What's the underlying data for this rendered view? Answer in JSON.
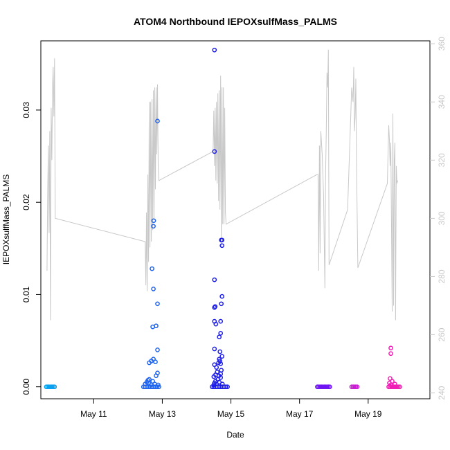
{
  "chart_data": {
    "type": "scatter",
    "title": "ATOM4 Northbound IEPOXsulfMass_PALMS",
    "xlabel": "Date",
    "ylabel": "IEPOXsulfMass_PALMS",
    "xlim": [
      9.46,
      20.8
    ],
    "ylim": [
      -0.0013,
      0.0375
    ],
    "y2lim": [
      238,
      361
    ],
    "x_ticks": [
      {
        "value": 11,
        "label": "May 11"
      },
      {
        "value": 13,
        "label": "May 13"
      },
      {
        "value": 15,
        "label": "May 15"
      },
      {
        "value": 17,
        "label": "May 17"
      },
      {
        "value": 19,
        "label": "May 19"
      }
    ],
    "y_ticks": [
      {
        "value": 0.0,
        "label": "0.00"
      },
      {
        "value": 0.01,
        "label": "0.01"
      },
      {
        "value": 0.02,
        "label": "0.02"
      },
      {
        "value": 0.03,
        "label": "0.03"
      }
    ],
    "y2_ticks": [
      {
        "value": 240,
        "label": "240"
      },
      {
        "value": 260,
        "label": "260"
      },
      {
        "value": 280,
        "label": "280"
      },
      {
        "value": 300,
        "label": "300"
      },
      {
        "value": 320,
        "label": "320"
      },
      {
        "value": 340,
        "label": "340"
      },
      {
        "value": 360,
        "label": "360"
      }
    ],
    "grid": false,
    "legend": "none",
    "colors": {
      "frame": "#000000",
      "secondary_line": "#c8c8c8",
      "secondary_axis": "#c8c8c8"
    },
    "series": [
      {
        "color": "#0aa0f0",
        "points": [
          [
            9.62,
            0
          ],
          [
            9.66,
            0
          ],
          [
            9.7,
            0
          ],
          [
            9.74,
            0
          ],
          [
            9.78,
            0
          ],
          [
            9.82,
            0
          ],
          [
            9.86,
            0
          ]
        ]
      },
      {
        "color": "#1e64f0",
        "points": [
          [
            12.45,
            0
          ],
          [
            12.5,
            0
          ],
          [
            12.55,
            0
          ],
          [
            12.6,
            0
          ],
          [
            12.65,
            0
          ],
          [
            12.7,
            0
          ],
          [
            12.75,
            0
          ],
          [
            12.8,
            0
          ],
          [
            12.85,
            0
          ],
          [
            12.9,
            0
          ],
          [
            12.5,
            0.0003
          ],
          [
            12.55,
            0.0005
          ],
          [
            12.58,
            0.0007
          ],
          [
            12.6,
            0.0004
          ],
          [
            12.62,
            0.0008
          ],
          [
            12.68,
            0.0002
          ],
          [
            12.72,
            0.0006
          ],
          [
            12.78,
            0.0003
          ],
          [
            12.82,
            0.0012
          ],
          [
            12.86,
            0.0015
          ],
          [
            12.88,
            0.0002
          ],
          [
            12.62,
            0.0026
          ],
          [
            12.68,
            0.0028
          ],
          [
            12.74,
            0.003
          ],
          [
            12.8,
            0.0027
          ],
          [
            12.86,
            0.004
          ],
          [
            12.72,
            0.0065
          ],
          [
            12.82,
            0.0066
          ],
          [
            12.86,
            0.009
          ],
          [
            12.74,
            0.0106
          ],
          [
            12.7,
            0.0128
          ],
          [
            12.74,
            0.0174
          ],
          [
            12.75,
            0.018
          ],
          [
            12.86,
            0.0288
          ]
        ]
      },
      {
        "color": "#1e1ee8",
        "points": [
          [
            14.45,
            0
          ],
          [
            14.5,
            0
          ],
          [
            14.55,
            0
          ],
          [
            14.6,
            0
          ],
          [
            14.65,
            0
          ],
          [
            14.7,
            0
          ],
          [
            14.75,
            0
          ],
          [
            14.8,
            0
          ],
          [
            14.85,
            0
          ],
          [
            14.9,
            0
          ],
          [
            14.5,
            0.0002
          ],
          [
            14.52,
            0.0004
          ],
          [
            14.55,
            0.0006
          ],
          [
            14.58,
            0.0003
          ],
          [
            14.62,
            0.0008
          ],
          [
            14.66,
            0.0005
          ],
          [
            14.7,
            0.001
          ],
          [
            14.75,
            0.0003
          ],
          [
            14.5,
            0.0011
          ],
          [
            14.55,
            0.0013
          ],
          [
            14.6,
            0.0016
          ],
          [
            14.65,
            0.0012
          ],
          [
            14.7,
            0.0014
          ],
          [
            14.72,
            0.0018
          ],
          [
            14.52,
            0.0024
          ],
          [
            14.58,
            0.0021
          ],
          [
            14.64,
            0.0026
          ],
          [
            14.7,
            0.0025
          ],
          [
            14.74,
            0.0033
          ],
          [
            14.66,
            0.003
          ],
          [
            14.68,
            0.0028
          ],
          [
            14.52,
            0.0041
          ],
          [
            14.68,
            0.0038
          ],
          [
            14.66,
            0.0054
          ],
          [
            14.7,
            0.0058
          ],
          [
            14.56,
            0.0068
          ],
          [
            14.7,
            0.0071
          ],
          [
            14.52,
            0.0071
          ],
          [
            14.52,
            0.0086
          ],
          [
            14.54,
            0.0087
          ],
          [
            14.72,
            0.009
          ],
          [
            14.74,
            0.0098
          ],
          [
            14.52,
            0.0116
          ],
          [
            14.74,
            0.0153
          ],
          [
            14.72,
            0.0159
          ],
          [
            14.74,
            0.0159
          ],
          [
            14.52,
            0.0255
          ],
          [
            14.52,
            0.0365
          ]
        ]
      },
      {
        "color": "#6e14f0",
        "points": [
          [
            17.52,
            0
          ],
          [
            17.56,
            0
          ],
          [
            17.6,
            0
          ],
          [
            17.64,
            0
          ],
          [
            17.68,
            0
          ],
          [
            17.72,
            0
          ],
          [
            17.76,
            0
          ],
          [
            17.8,
            0
          ],
          [
            17.84,
            0
          ],
          [
            17.88,
            0
          ]
        ]
      },
      {
        "color": "#c81ed2",
        "points": [
          [
            18.52,
            0
          ],
          [
            18.56,
            0
          ],
          [
            18.6,
            0
          ],
          [
            18.64,
            0
          ],
          [
            18.68,
            0
          ]
        ]
      },
      {
        "color": "#f01eb4",
        "points": [
          [
            19.6,
            0
          ],
          [
            19.64,
            0
          ],
          [
            19.68,
            0
          ],
          [
            19.72,
            0
          ],
          [
            19.76,
            0
          ],
          [
            19.8,
            0
          ],
          [
            19.84,
            0
          ],
          [
            19.88,
            0
          ],
          [
            19.92,
            0
          ],
          [
            19.62,
            0.0004
          ],
          [
            19.66,
            0.0002
          ],
          [
            19.7,
            0.0006
          ],
          [
            19.78,
            0.0003
          ],
          [
            19.64,
            0.0009
          ],
          [
            19.66,
            0.0036
          ],
          [
            19.66,
            0.0042
          ]
        ]
      }
    ],
    "secondary_series": {
      "color": "#c8c8c8",
      "points": [
        [
          9.64,
          282
        ],
        [
          9.66,
          310
        ],
        [
          9.68,
          325
        ],
        [
          9.7,
          295
        ],
        [
          9.72,
          330
        ],
        [
          9.74,
          265
        ],
        [
          9.76,
          338
        ],
        [
          9.78,
          320
        ],
        [
          9.8,
          345
        ],
        [
          9.82,
          352
        ],
        [
          9.84,
          335
        ],
        [
          9.86,
          355
        ],
        [
          9.88,
          300
        ],
        [
          12.5,
          292
        ],
        [
          12.52,
          277
        ],
        [
          12.54,
          302
        ],
        [
          12.56,
          275
        ],
        [
          12.58,
          315
        ],
        [
          12.6,
          285
        ],
        [
          12.62,
          340
        ],
        [
          12.64,
          290
        ],
        [
          12.66,
          340
        ],
        [
          12.68,
          292
        ],
        [
          12.7,
          341
        ],
        [
          12.72,
          296
        ],
        [
          12.74,
          344
        ],
        [
          12.76,
          300
        ],
        [
          12.78,
          345
        ],
        [
          12.8,
          310
        ],
        [
          12.82,
          345
        ],
        [
          12.84,
          322
        ],
        [
          12.86,
          346
        ],
        [
          12.88,
          318
        ],
        [
          12.9,
          313
        ],
        [
          14.48,
          323
        ],
        [
          14.5,
          337
        ],
        [
          14.52,
          318
        ],
        [
          14.54,
          338
        ],
        [
          14.56,
          313
        ],
        [
          14.58,
          340
        ],
        [
          14.6,
          312
        ],
        [
          14.62,
          343
        ],
        [
          14.64,
          306
        ],
        [
          14.66,
          344
        ],
        [
          14.68,
          303
        ],
        [
          14.7,
          349
        ],
        [
          14.72,
          290
        ],
        [
          14.74,
          345
        ],
        [
          14.76,
          298
        ],
        [
          14.78,
          345
        ],
        [
          14.8,
          298
        ],
        [
          14.82,
          338
        ],
        [
          14.84,
          302
        ],
        [
          14.86,
          298
        ],
        [
          17.5,
          315
        ],
        [
          17.54,
          315
        ],
        [
          17.56,
          282
        ],
        [
          17.58,
          325
        ],
        [
          17.6,
          288
        ],
        [
          17.62,
          330
        ],
        [
          17.66,
          322
        ],
        [
          17.7,
          308
        ],
        [
          17.74,
          276
        ],
        [
          17.76,
          315
        ],
        [
          17.78,
          330
        ],
        [
          17.8,
          350
        ],
        [
          17.82,
          345
        ],
        [
          17.84,
          358
        ],
        [
          17.86,
          284
        ],
        [
          18.4,
          303
        ],
        [
          18.52,
          345
        ],
        [
          18.56,
          340
        ],
        [
          18.58,
          352
        ],
        [
          18.6,
          330
        ],
        [
          18.62,
          335
        ],
        [
          18.64,
          348
        ],
        [
          18.66,
          320
        ],
        [
          18.7,
          283
        ],
        [
          19.56,
          312
        ],
        [
          19.6,
          332
        ],
        [
          19.62,
          327
        ],
        [
          19.64,
          318
        ],
        [
          19.66,
          326
        ],
        [
          19.7,
          268
        ],
        [
          19.72,
          336
        ],
        [
          19.74,
          270
        ],
        [
          19.76,
          320
        ],
        [
          19.78,
          326
        ],
        [
          19.8,
          265
        ],
        [
          19.82,
          318
        ],
        [
          19.84,
          312
        ],
        [
          19.86,
          313
        ]
      ]
    }
  }
}
